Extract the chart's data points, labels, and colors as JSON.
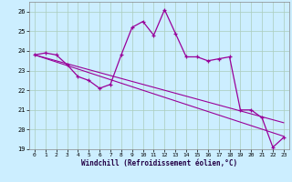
{
  "xlabel": "Windchill (Refroidissement éolien,°C)",
  "hours": [
    0,
    1,
    2,
    3,
    4,
    5,
    6,
    7,
    8,
    9,
    10,
    11,
    12,
    13,
    14,
    15,
    16,
    17,
    18,
    19,
    20,
    21,
    22,
    23
  ],
  "zigzag": [
    23.8,
    23.9,
    23.8,
    23.3,
    22.7,
    22.5,
    22.1,
    22.3,
    23.8,
    25.2,
    25.5,
    24.8,
    26.1,
    24.9,
    23.7,
    23.7,
    23.5,
    23.6,
    23.7,
    21.0,
    21.0,
    20.6,
    19.1,
    19.6
  ],
  "trend1": [
    23.8,
    23.65,
    23.5,
    23.35,
    23.2,
    23.05,
    22.9,
    22.75,
    22.6,
    22.45,
    22.3,
    22.15,
    22.0,
    21.85,
    21.7,
    21.55,
    21.4,
    21.25,
    21.1,
    20.95,
    20.8,
    20.65,
    20.5,
    20.35
  ],
  "trend2": [
    23.8,
    23.62,
    23.44,
    23.26,
    23.08,
    22.9,
    22.72,
    22.54,
    22.36,
    22.18,
    22.0,
    21.82,
    21.64,
    21.46,
    21.28,
    21.1,
    20.92,
    20.74,
    20.56,
    20.38,
    20.2,
    20.02,
    19.84,
    19.66
  ],
  "line_color": "#990099",
  "bg_color": "#cceeff",
  "grid_color": "#aaccbb",
  "ylim": [
    19,
    26.5
  ],
  "xlim": [
    -0.5,
    23.5
  ],
  "yticks": [
    19,
    20,
    21,
    22,
    23,
    24,
    25,
    26
  ],
  "xticks": [
    0,
    1,
    2,
    3,
    4,
    5,
    6,
    7,
    8,
    9,
    10,
    11,
    12,
    13,
    14,
    15,
    16,
    17,
    18,
    19,
    20,
    21,
    22,
    23
  ]
}
